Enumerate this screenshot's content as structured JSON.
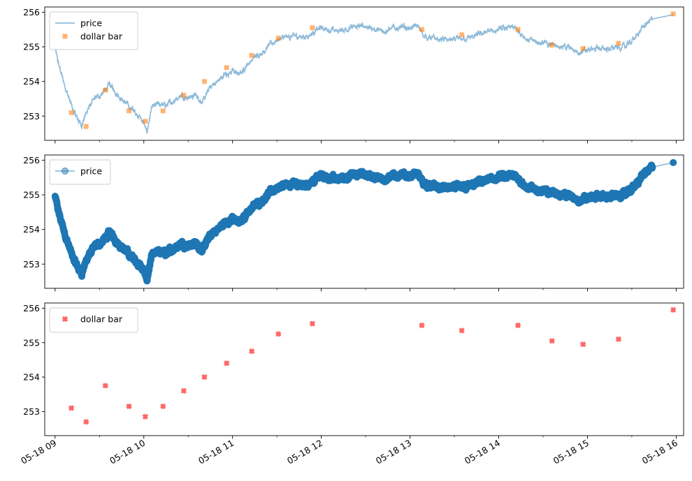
{
  "chart_data": [
    {
      "type": "line",
      "x_axis": {
        "type": "datetime",
        "range": [
          "05-18 08:53",
          "05-18 16:05"
        ],
        "ticks": [
          "05-18 09",
          "05-18 10",
          "05-18 11",
          "05-18 12",
          "05-18 13",
          "05-18 14",
          "05-18 15",
          "05-18 16"
        ],
        "tick_labels_visible": false
      },
      "y_axis": {
        "range": [
          252.3,
          256.15
        ],
        "ticks": [
          253,
          254,
          255,
          256
        ],
        "tick_labels": [
          "253",
          "254",
          "255",
          "256"
        ]
      },
      "legend": {
        "placement": "upper-left"
      },
      "series": [
        {
          "name": "price",
          "style": "line",
          "color": "#1f77b4",
          "alpha": 0.5,
          "anchors": [
            [
              "09:00",
              254.95
            ],
            [
              "09:02",
              254.55
            ],
            [
              "09:05",
              254.1
            ],
            [
              "09:08",
              253.7
            ],
            [
              "09:11",
              253.3
            ],
            [
              "09:14",
              253.0
            ],
            [
              "09:18",
              252.75
            ],
            [
              "09:22",
              253.2
            ],
            [
              "09:27",
              253.5
            ],
            [
              "09:32",
              253.65
            ],
            [
              "09:37",
              253.9
            ],
            [
              "09:42",
              253.65
            ],
            [
              "09:47",
              253.4
            ],
            [
              "09:52",
              253.2
            ],
            [
              "09:57",
              253.0
            ],
            [
              "10:00",
              252.8
            ],
            [
              "10:02",
              252.5
            ],
            [
              "10:05",
              253.2
            ],
            [
              "10:10",
              253.35
            ],
            [
              "10:15",
              253.3
            ],
            [
              "10:20",
              253.45
            ],
            [
              "10:25",
              253.6
            ],
            [
              "10:30",
              253.55
            ],
            [
              "10:35",
              253.6
            ],
            [
              "10:40",
              253.4
            ],
            [
              "10:45",
              253.85
            ],
            [
              "10:50",
              254.0
            ],
            [
              "10:55",
              254.2
            ],
            [
              "11:00",
              254.3
            ],
            [
              "11:05",
              254.2
            ],
            [
              "11:10",
              254.5
            ],
            [
              "11:15",
              254.7
            ],
            [
              "11:20",
              254.85
            ],
            [
              "11:25",
              255.05
            ],
            [
              "11:30",
              255.2
            ],
            [
              "11:40",
              255.3
            ],
            [
              "11:50",
              255.3
            ],
            [
              "12:00",
              255.55
            ],
            [
              "12:10",
              255.45
            ],
            [
              "12:20",
              255.55
            ],
            [
              "12:30",
              255.6
            ],
            [
              "12:40",
              255.45
            ],
            [
              "12:50",
              255.55
            ],
            [
              "13:00",
              255.55
            ],
            [
              "13:05",
              255.6
            ],
            [
              "13:10",
              255.3
            ],
            [
              "13:20",
              255.2
            ],
            [
              "13:30",
              255.2
            ],
            [
              "13:40",
              255.25
            ],
            [
              "13:50",
              255.4
            ],
            [
              "14:00",
              255.5
            ],
            [
              "14:10",
              255.55
            ],
            [
              "14:15",
              255.4
            ],
            [
              "14:20",
              255.2
            ],
            [
              "14:30",
              255.1
            ],
            [
              "14:40",
              255.05
            ],
            [
              "14:45",
              255.0
            ],
            [
              "14:55",
              254.85
            ],
            [
              "15:05",
              254.95
            ],
            [
              "15:15",
              254.95
            ],
            [
              "15:25",
              255.0
            ],
            [
              "15:32",
              255.25
            ],
            [
              "15:38",
              255.6
            ],
            [
              "15:44",
              255.8
            ],
            [
              "15:58",
              255.93
            ]
          ]
        },
        {
          "name": "dollar bar",
          "style": "marker-x",
          "color": "#ff7f0e",
          "alpha": 0.6,
          "x": [
            "09:11",
            "09:21",
            "09:34",
            "09:50",
            "10:01",
            "10:13",
            "10:27",
            "10:41",
            "10:56",
            "11:13",
            "11:31",
            "11:54",
            "13:08",
            "13:35",
            "14:13",
            "14:36",
            "14:57",
            "15:21",
            "15:58"
          ],
          "y": [
            253.1,
            252.7,
            253.75,
            253.15,
            252.85,
            253.15,
            253.6,
            254.0,
            254.4,
            254.75,
            255.25,
            255.55,
            255.5,
            255.35,
            255.5,
            255.05,
            254.95,
            255.1,
            255.95
          ]
        }
      ]
    },
    {
      "type": "line",
      "x_axis": {
        "type": "datetime",
        "tick_labels_visible": false
      },
      "y_axis": {
        "range": [
          252.3,
          256.15
        ],
        "ticks": [
          253,
          254,
          255,
          256
        ],
        "tick_labels": [
          "253",
          "254",
          "255",
          "256"
        ]
      },
      "legend": {
        "placement": "upper-left"
      },
      "series": [
        {
          "name": "price",
          "style": "line-circle-markers",
          "color": "#1f77b4",
          "alpha": 0.5,
          "same_as": "chart_data.0.series.0.anchors"
        }
      ]
    },
    {
      "type": "scatter",
      "x_axis": {
        "type": "datetime",
        "tick_labels_visible": true
      },
      "y_axis": {
        "range": [
          252.3,
          256.15
        ],
        "ticks": [
          253,
          254,
          255,
          256
        ],
        "tick_labels": [
          "253",
          "254",
          "255",
          "256"
        ]
      },
      "legend": {
        "placement": "upper-left"
      },
      "series": [
        {
          "name": "dollar bar",
          "style": "marker-x",
          "color": "#ff0000",
          "alpha": 0.6,
          "same_as": "chart_data.0.series.1"
        }
      ]
    }
  ]
}
